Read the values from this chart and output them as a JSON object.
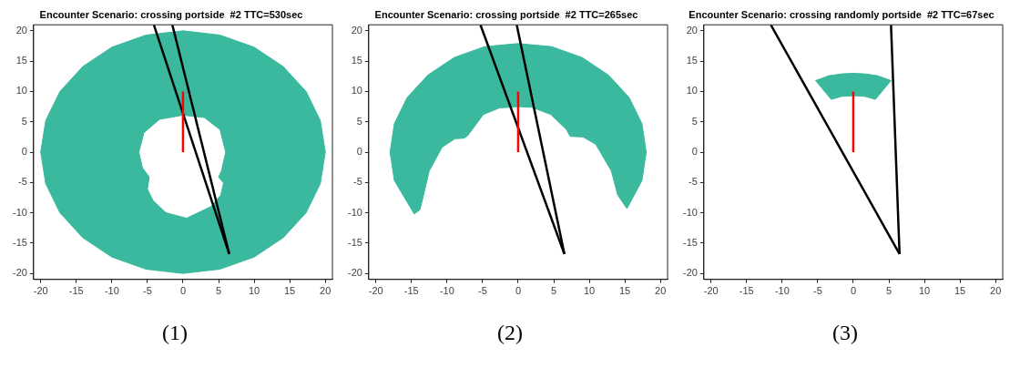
{
  "chart_data": [
    {
      "type": "area",
      "title": "Encounter Scenario: crossing portside  #2 TTC=530sec",
      "xlim": [
        -21,
        21
      ],
      "ylim": [
        -21,
        21
      ],
      "xticks": [
        -20,
        -15,
        -10,
        -5,
        0,
        5,
        10,
        15,
        20
      ],
      "yticks": [
        -20,
        -15,
        -10,
        -5,
        0,
        5,
        10,
        15,
        20
      ],
      "annotations": [
        "(1)"
      ],
      "series": [
        {
          "type": "area",
          "color": "#3bb99e",
          "x": [
            20,
            19.3,
            17.3,
            14.1,
            10,
            5.2,
            0,
            -5.2,
            -10,
            -14.1,
            -17.3,
            -19.3,
            -20,
            -19.3,
            -17.3,
            -14.1,
            -10,
            -5.2,
            0,
            5.2,
            10,
            14.1,
            17.3,
            19.3,
            20,
            6,
            5.4,
            5,
            5.7,
            5.3,
            3.9,
            0.5,
            -2.4,
            -4.2,
            -5,
            -4.8,
            -4.8,
            -5.7,
            -6.2,
            -5.5,
            -3.3,
            0,
            3,
            5.2,
            6,
            20
          ],
          "values": [
            0,
            5.2,
            10,
            14.1,
            17.3,
            19.3,
            20,
            19.3,
            17.3,
            14.1,
            10,
            5.2,
            0,
            -5.2,
            -10,
            -14.1,
            -17.3,
            -19.3,
            -20,
            -19.3,
            -17.3,
            -14.1,
            -10,
            -5.2,
            0,
            0,
            -3.1,
            -4.1,
            -5.1,
            -7.1,
            -9,
            -10.9,
            -10,
            -8,
            -6.1,
            -4.6,
            -4,
            -2.6,
            0,
            3.2,
            5.4,
            6.1,
            5.7,
            3.7,
            0,
            0
          ]
        },
        {
          "type": "line",
          "color": "#000000",
          "x": [
            6.5,
            -4.1
          ],
          "values": [
            -16.8,
            21
          ]
        },
        {
          "type": "line",
          "color": "#000000",
          "x": [
            6.5,
            -1.5
          ],
          "values": [
            -16.8,
            21
          ]
        },
        {
          "type": "line",
          "color": "#ff0000",
          "x": [
            0,
            0
          ],
          "values": [
            0,
            10
          ]
        }
      ]
    },
    {
      "type": "area",
      "title": "Encounter Scenario: crossing portside  #2 TTC=265sec",
      "xlim": [
        -21,
        21
      ],
      "ylim": [
        -21,
        21
      ],
      "xticks": [
        -20,
        -15,
        -10,
        -5,
        0,
        5,
        10,
        15,
        20
      ],
      "yticks": [
        -20,
        -15,
        -10,
        -5,
        0,
        5,
        10,
        15,
        20
      ],
      "annotations": [
        "(2)"
      ],
      "series": [
        {
          "type": "area",
          "color": "#3bb99e",
          "x": [
            15.3,
            17.4,
            18,
            17.4,
            15.6,
            12.7,
            9,
            4.7,
            0,
            -4.7,
            -9,
            -12.7,
            -15.6,
            -17.4,
            -18,
            -17.4,
            -14.6,
            -13.8,
            -13.3,
            -12.5,
            -10.7,
            -8.9,
            -7.6,
            -7.1,
            -4.9,
            -2.6,
            0,
            1.9,
            4.6,
            6.8,
            7.3,
            9.1,
            10.9,
            13.1,
            14,
            15.3
          ],
          "values": [
            -9.3,
            -4.7,
            0,
            4.7,
            9,
            12.7,
            15.6,
            17.4,
            17.9,
            17.4,
            15.6,
            12.7,
            9,
            4.7,
            0,
            -4.7,
            -10.2,
            -9.5,
            -7.1,
            -3.1,
            0.8,
            2.2,
            2.3,
            2.7,
            6.2,
            7.3,
            7.5,
            7.4,
            6.2,
            3.7,
            2.6,
            2.5,
            1.3,
            -3.1,
            -7.1,
            -9.3
          ]
        },
        {
          "type": "line",
          "color": "#000000",
          "x": [
            6.5,
            -5.3
          ],
          "values": [
            -16.8,
            21
          ]
        },
        {
          "type": "line",
          "color": "#000000",
          "x": [
            6.5,
            -0.2
          ],
          "values": [
            -16.8,
            21
          ]
        },
        {
          "type": "line",
          "color": "#ff0000",
          "x": [
            0,
            0
          ],
          "values": [
            0,
            10
          ]
        }
      ]
    },
    {
      "type": "area",
      "title": "Encounter Scenario: crossing randomly portside  #2 TTC=67sec",
      "xlim": [
        -21,
        21
      ],
      "ylim": [
        -21,
        21
      ],
      "xticks": [
        -20,
        -15,
        -10,
        -5,
        0,
        5,
        10,
        15,
        20
      ],
      "yticks": [
        -20,
        -15,
        -10,
        -5,
        0,
        5,
        10,
        15,
        20
      ],
      "annotations": [
        "(3)"
      ],
      "series": [
        {
          "type": "area",
          "color": "#3bb99e",
          "x": [
            5.3,
            3.4,
            1.6,
            0,
            -1.6,
            -3.4,
            -5.3,
            -3.1,
            -1.6,
            0,
            1.6,
            3.1,
            5.3
          ],
          "values": [
            11.8,
            12.6,
            12.9,
            13,
            12.9,
            12.6,
            11.8,
            8.7,
            9.2,
            9.3,
            9.2,
            8.7,
            11.8
          ]
        },
        {
          "type": "line",
          "color": "#000000",
          "x": [
            6.5,
            -11.6
          ],
          "values": [
            -16.8,
            21
          ]
        },
        {
          "type": "line",
          "color": "#000000",
          "x": [
            6.5,
            5.3
          ],
          "values": [
            -16.8,
            21
          ]
        },
        {
          "type": "line",
          "color": "#ff0000",
          "x": [
            0,
            0
          ],
          "values": [
            0,
            10
          ]
        }
      ]
    }
  ]
}
